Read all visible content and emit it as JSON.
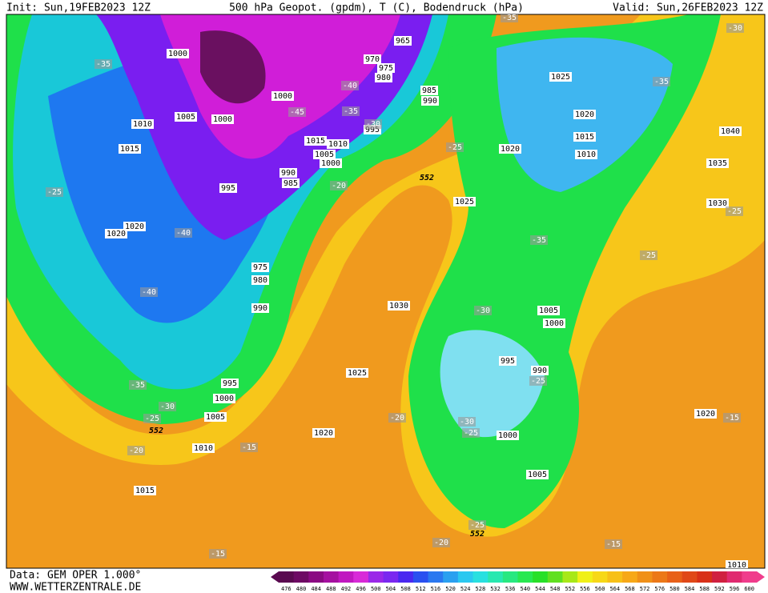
{
  "header": {
    "init": "Init: Sun,19FEB2023 12Z",
    "title": "500 hPa Geopot. (gpdm), T (C), Bodendruck (hPa)",
    "valid": "Valid: Sun,26FEB2023 12Z"
  },
  "footer": {
    "source": "Data: GEM OPER 1.000°",
    "website": "WWW.WETTERZENTRALE.DE"
  },
  "colorbar": {
    "labels": [
      "476",
      "480",
      "484",
      "488",
      "492",
      "496",
      "500",
      "504",
      "508",
      "512",
      "516",
      "520",
      "524",
      "528",
      "532",
      "536",
      "540",
      "544",
      "548",
      "552",
      "556",
      "560",
      "564",
      "568",
      "572",
      "576",
      "580",
      "584",
      "588",
      "592",
      "596",
      "600"
    ]
  },
  "pressure_labels": [
    "1000",
    "1010",
    "1005",
    "1000",
    "1015",
    "1000",
    "965",
    "970",
    "975",
    "980",
    "985",
    "990",
    "995",
    "1015",
    "1010",
    "1005",
    "1000",
    "990",
    "985",
    "995",
    "1020",
    "1020",
    "975",
    "980",
    "990",
    "1025",
    "1020",
    "1015",
    "1010",
    "1020",
    "1025",
    "1040",
    "1035",
    "1030",
    "1030",
    "1025",
    "1005",
    "1000",
    "995",
    "990",
    "995",
    "1000",
    "1005",
    "1010",
    "1020",
    "1000",
    "1005",
    "1015",
    "1020",
    "1010"
  ],
  "temperature_labels": [
    "-35",
    "-40",
    "-45",
    "-35",
    "-30",
    "-25",
    "-20",
    "-25",
    "-40",
    "-40",
    "-35",
    "-30",
    "-25",
    "-20",
    "-15",
    "-35",
    "-35",
    "-30",
    "-35",
    "-25",
    "-25",
    "-30",
    "-25",
    "-30",
    "-25",
    "-20",
    "-25",
    "-20",
    "-15",
    "-15",
    "-15"
  ],
  "geopotential_labels": [
    "552",
    "552",
    "552"
  ]
}
